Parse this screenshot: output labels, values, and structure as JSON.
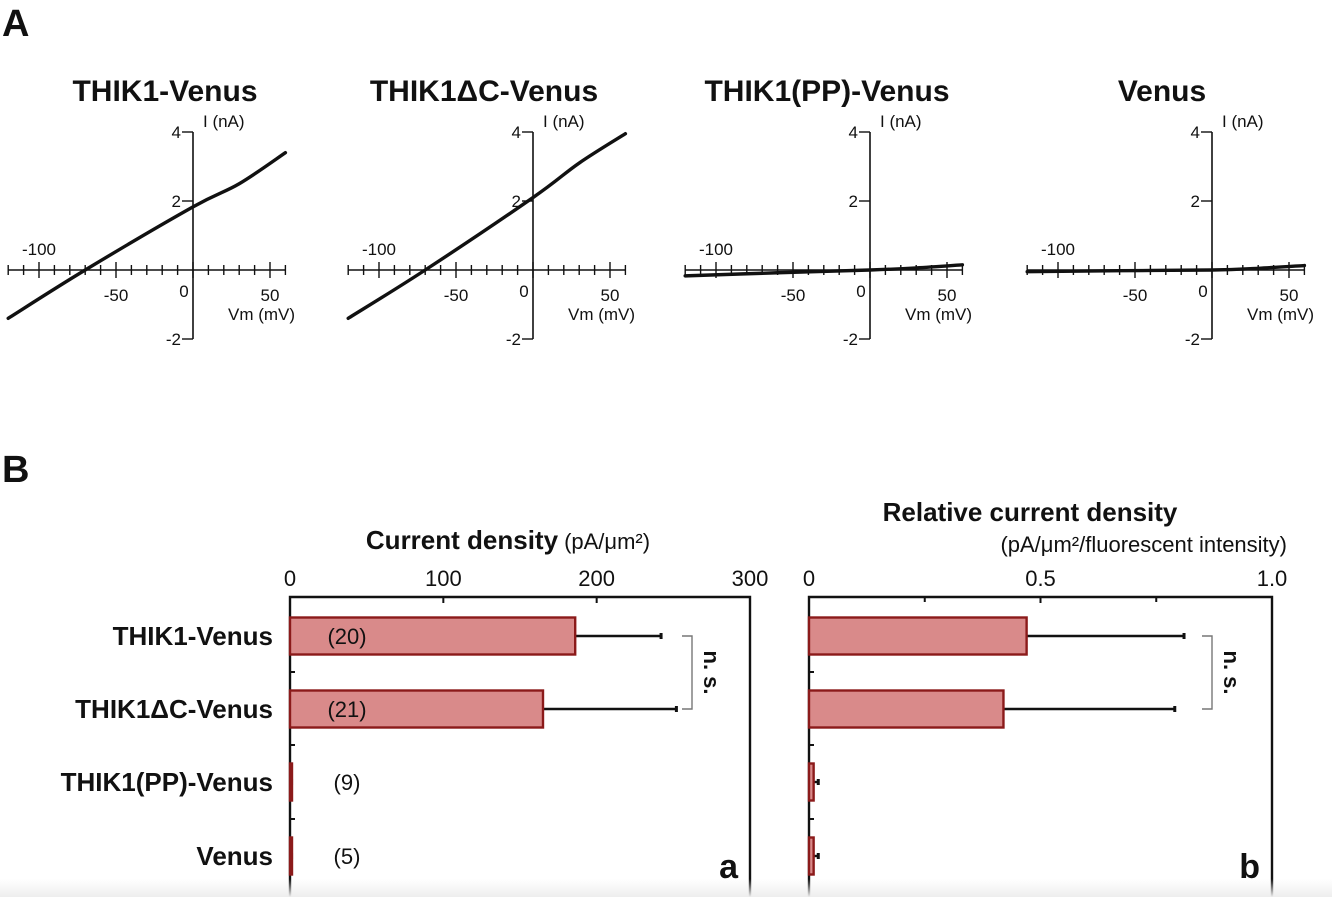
{
  "panel_labels": {
    "A": "A",
    "B": "B"
  },
  "chart_data": [
    {
      "type": "line",
      "title": "THIK1-Venus",
      "xlabel": "Vm (mV)",
      "ylabel": "I (nA)",
      "xlim": [
        -120,
        60
      ],
      "ylim": [
        -2,
        4
      ],
      "xticklabels": [
        "-100",
        "-50",
        "0",
        "50"
      ],
      "yticklabels": [
        "4",
        "2",
        "-2"
      ],
      "x": [
        -120,
        -70,
        0,
        30,
        60
      ],
      "y": [
        -1.4,
        0,
        1.83,
        2.5,
        3.4
      ]
    },
    {
      "type": "line",
      "title": "THIK1ΔC-Venus",
      "xlabel": "Vm (mV)",
      "ylabel": "I (nA)",
      "xlim": [
        -120,
        60
      ],
      "ylim": [
        -2,
        4
      ],
      "xticklabels": [
        "-100",
        "-50",
        "0",
        "50"
      ],
      "yticklabels": [
        "4",
        "2",
        "-2"
      ],
      "x": [
        -120,
        -70,
        0,
        30,
        60
      ],
      "y": [
        -1.4,
        0,
        2.1,
        3.1,
        3.95
      ]
    },
    {
      "type": "line",
      "title": "THIK1(PP)-Venus",
      "xlabel": "Vm (mV)",
      "ylabel": "I (nA)",
      "xlim": [
        -120,
        60
      ],
      "ylim": [
        -2,
        4
      ],
      "xticklabels": [
        "-100",
        "-50",
        "0",
        "50"
      ],
      "yticklabels": [
        "4",
        "2",
        "-2"
      ],
      "x": [
        -120,
        -60,
        0,
        30,
        60
      ],
      "y": [
        -0.17,
        -0.08,
        0,
        0.06,
        0.15
      ]
    },
    {
      "type": "line",
      "title": "Venus",
      "xlabel": "Vm (mV)",
      "ylabel": "I (nA)",
      "xlim": [
        -120,
        60
      ],
      "ylim": [
        -2,
        4
      ],
      "xticklabels": [
        "-100",
        "-50",
        "0",
        "50"
      ],
      "yticklabels": [
        "4",
        "2",
        "-2"
      ],
      "x": [
        -120,
        -60,
        0,
        30,
        60
      ],
      "y": [
        -0.05,
        -0.02,
        0,
        0.05,
        0.13
      ]
    },
    {
      "type": "bar",
      "orientation": "horizontal",
      "panel_letter": "a",
      "title": "Current density",
      "title_unit": "(pA/μm²)",
      "xlim": [
        0,
        300
      ],
      "xticklabels": [
        "0",
        "100",
        "200",
        "300"
      ],
      "categories": [
        "THIK1-Venus",
        "THIK1ΔC-Venus",
        "THIK1(PP)-Venus",
        "Venus"
      ],
      "values": [
        186,
        165,
        1,
        1
      ],
      "error_upper": [
        242,
        252,
        1,
        1
      ],
      "n_labels": [
        "(20)",
        "(21)",
        "(9)",
        "(5)"
      ],
      "annotation": "n. s.",
      "bar_color": "#d98a8a",
      "bar_edge": "#8b1a1a"
    },
    {
      "type": "bar",
      "orientation": "horizontal",
      "panel_letter": "b",
      "title": "Relative current density",
      "title_unit": "(pA/μm²/fluorescent intensity)",
      "xlim": [
        0,
        1.0
      ],
      "xticklabels": [
        "0",
        "0.5",
        "1.0"
      ],
      "categories": [
        "THIK1-Venus",
        "THIK1ΔC-Venus",
        "THIK1(PP)-Venus",
        "Venus"
      ],
      "values": [
        0.47,
        0.42,
        0.01,
        0.01
      ],
      "error_upper": [
        0.81,
        0.79,
        0.02,
        0.02
      ],
      "annotation": "n. s.",
      "bar_color": "#d98a8a",
      "bar_edge": "#8b1a1a"
    }
  ]
}
